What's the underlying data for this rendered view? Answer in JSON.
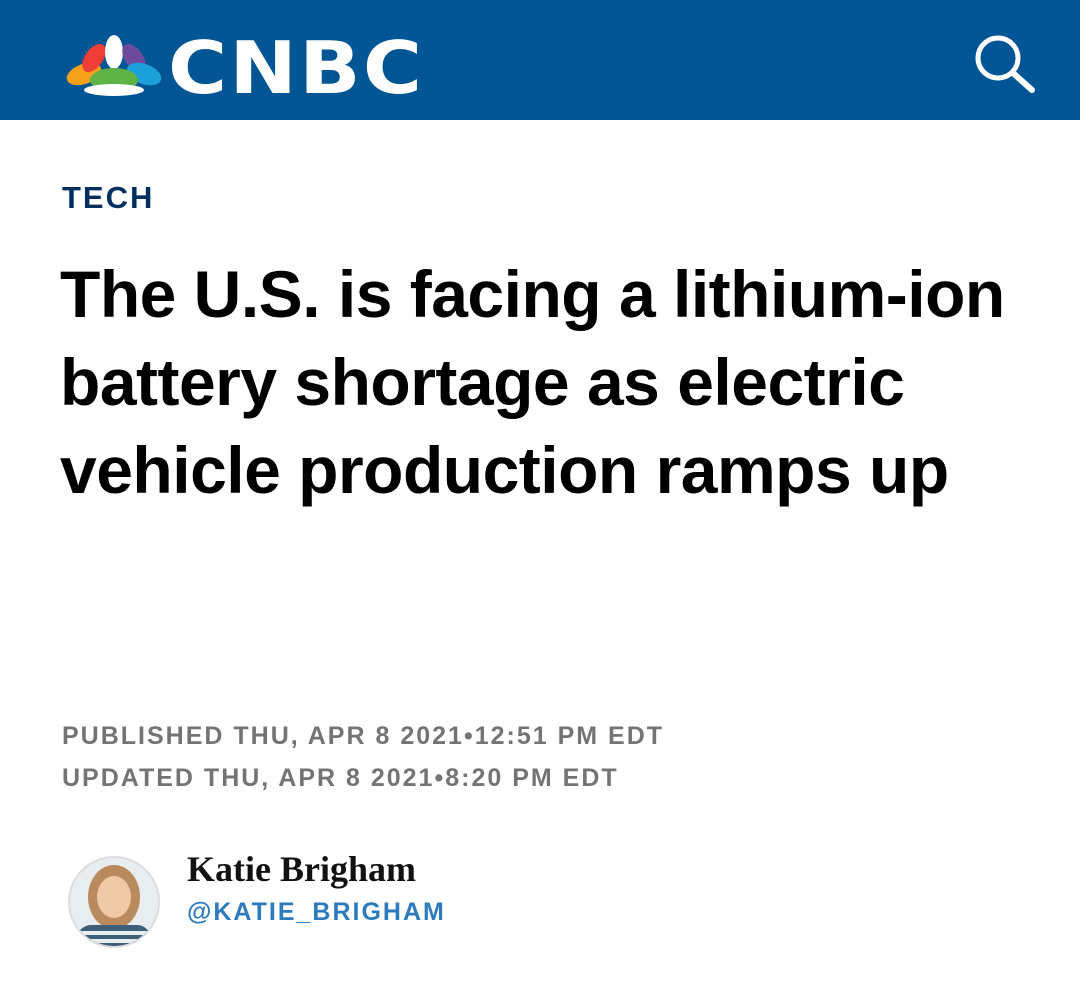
{
  "header": {
    "logo": "CNBC"
  },
  "article": {
    "section": "TECH",
    "headline": "The U.S. is facing a lithium-ion battery shortage as electric vehicle production ramps up",
    "published": "PUBLISHED THU, APR 8 2021•12:51 PM EDT",
    "updated": "UPDATED THU, APR 8 2021•8:20 PM EDT",
    "author": {
      "name": "Katie Brigham",
      "handle": "@KATIE_BRIGHAM"
    }
  }
}
